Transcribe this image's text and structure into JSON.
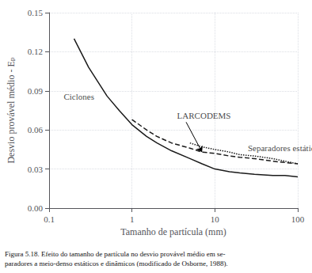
{
  "chart_data": {
    "type": "line",
    "xlabel": "Tamanho de partícula (mm)",
    "ylabel": "Desvio provável médio - Eₚ",
    "caption": "Figura 5.18. Efeito do tamanho de partícula no desvio provável médio em se-\nparadores a meio-denso estáticos e dinâmicos (modificado de Osborne, 1988).",
    "log": "x",
    "xlim": [
      0.1,
      100
    ],
    "ylim": [
      0.0,
      0.15
    ],
    "xticks": [
      0.1,
      1,
      10,
      100
    ],
    "yticks": [
      {
        "value": 0,
        "label": "0.00"
      },
      0.03,
      0.06,
      0.09,
      0.12,
      0.15
    ],
    "grid": true,
    "series": [
      {
        "x": [
          0.2,
          0.3,
          0.5,
          0.7,
          1.0,
          1.5,
          2.0,
          3.0,
          5.0,
          7.0,
          10.0,
          15.0,
          20.0,
          30.0,
          50.0,
          70.0,
          100.0
        ],
        "values": [
          0.13,
          0.108,
          0.086,
          0.075,
          0.064,
          0.055,
          0.05,
          0.044,
          0.038,
          0.034,
          0.03,
          0.028,
          0.027,
          0.026,
          0.025,
          0.025,
          0.024
        ],
        "color": "#1a1a1a",
        "line_style": "solid"
      },
      {
        "x": [
          1.0,
          1.5,
          2.0,
          3.0,
          5.0,
          7.0,
          10.0,
          15.0,
          20.0,
          30.0,
          50.0,
          70.0,
          100.0
        ],
        "values": [
          0.068,
          0.06,
          0.055,
          0.05,
          0.046,
          0.043,
          0.042,
          0.04,
          0.039,
          0.038,
          0.036,
          0.035,
          0.034
        ],
        "color": "#1a1a1a",
        "line_style": "dashed"
      },
      {
        "x": [
          5.0,
          7.0,
          10.0,
          15.0,
          20.0,
          30.0,
          50.0,
          70.0,
          100.0
        ],
        "values": [
          0.05,
          0.047,
          0.045,
          0.043,
          0.041,
          0.04,
          0.038,
          0.036,
          0.034
        ],
        "color": "#1a1a1a",
        "line_style": "dotted"
      }
    ],
    "annotations": [
      {
        "text": "Ciclones",
        "x": 0.35,
        "y": 0.082
      },
      {
        "text": "LARCODEMS",
        "x": 3.5,
        "y": 0.068,
        "arrow": {
          "from": [
            4.5,
            0.066
          ],
          "to": [
            7.0,
            0.043
          ]
        }
      },
      {
        "text": "Separadores estáticos",
        "x": 25,
        "y": 0.043
      }
    ]
  }
}
